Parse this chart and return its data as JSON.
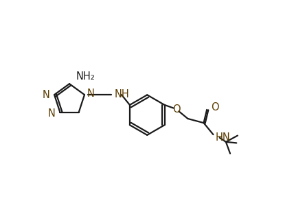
{
  "bg_color": "#ffffff",
  "line_color": "#1a1a1a",
  "label_color": "#5c3d00",
  "line_width": 1.6,
  "font_size": 10.5,
  "figsize": [
    4.12,
    2.93
  ],
  "dpi": 100,
  "NH2_label": "NH₂",
  "N_label": "N",
  "NH_label": "NH",
  "HN_label": "HN",
  "O_label": "O"
}
